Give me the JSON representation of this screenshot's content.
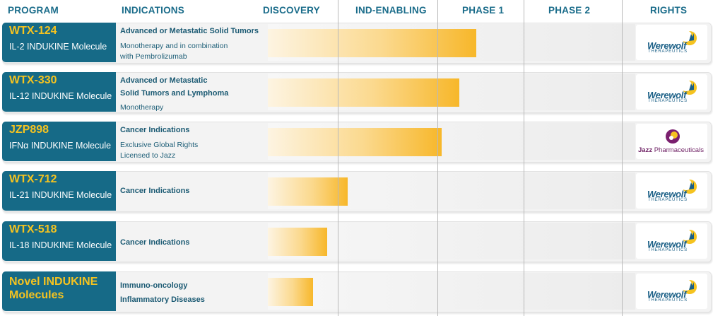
{
  "headers": {
    "program": "PROGRAM",
    "indications": "INDICATIONS",
    "discovery": "DISCOVERY",
    "ind_enabling": "IND-ENABLING",
    "phase1": "PHASE 1",
    "phase2": "PHASE 2",
    "rights": "RIGHTS"
  },
  "chart_data": {
    "type": "bar",
    "title": "",
    "orientation": "horizontal",
    "stages": [
      "DISCOVERY",
      "IND-ENABLING",
      "PHASE 1",
      "PHASE 2"
    ],
    "xlim": [
      0,
      4
    ],
    "categories": [
      "WTX-124",
      "WTX-330",
      "JZP898",
      "WTX-712",
      "WTX-518",
      "Novel INDUKINE Molecules"
    ],
    "values": [
      2.45,
      2.25,
      2.05,
      1.1,
      0.85,
      0.65
    ]
  },
  "rows": [
    {
      "name": "WTX-124",
      "subtitle": "IL-2 INDUKINE Molecule",
      "ind1": "Advanced or Metastatic Solid Tumors",
      "ind2": "Monotherapy and in combination",
      "ind3": "with Pembrolizumab",
      "rights": "Werewolf"
    },
    {
      "name": "WTX-330",
      "subtitle": "IL-12 INDUKINE Molecule",
      "ind1": "Advanced or Metastatic",
      "ind2": "Solid Tumors and Lymphoma",
      "ind3": "Monotherapy",
      "rights": "Werewolf"
    },
    {
      "name": "JZP898",
      "subtitle": "IFNα INDUKINE Molecule",
      "ind1": "Cancer Indications",
      "ind2": "Exclusive Global Rights",
      "ind3": "Licensed to Jazz",
      "rights": "Jazz"
    },
    {
      "name": "WTX-712",
      "subtitle": "IL-21 INDUKINE Molecule",
      "ind1": "Cancer Indications",
      "rights": "Werewolf"
    },
    {
      "name": "WTX-518",
      "subtitle": "IL-18 INDUKINE Molecule",
      "ind1": "Cancer Indications",
      "rights": "Werewolf"
    },
    {
      "name": "Novel INDUKINE Molecules",
      "ind1": "Immuno-oncology",
      "ind2": "Inflammatory Diseases",
      "rights": "Werewolf"
    }
  ],
  "logos": {
    "werewolf": "Werewolf",
    "werewolf_sub": "THERAPEUTICS",
    "jazz_bold": "Jazz",
    "jazz_rest": " Pharmaceuticals"
  },
  "colors": {
    "program_bg": "#166a87",
    "program_name": "#f5c320",
    "header_text": "#1a6c8a",
    "bar_end": "#f7b72a"
  }
}
